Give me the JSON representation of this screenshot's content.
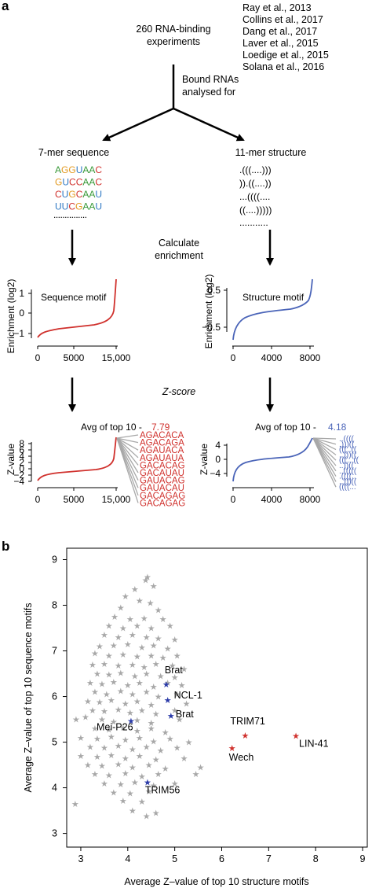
{
  "panel_a": {
    "label": "a",
    "experiments": "260 RNA-binding experiments",
    "experiments_lines": [
      "260 RNA-binding",
      "experiments"
    ],
    "references": [
      "Ray et al., 2013",
      "Collins et al., 2017",
      "Dang et al., 2017",
      "Laver et al., 2015",
      "Loedige et al., 2015",
      "Solana et al., 2016"
    ],
    "bound_lines": [
      "Bound RNAs",
      "analysed for"
    ],
    "seq_title": "7-mer sequence",
    "struct_title": "11-mer structure",
    "kmers": [
      "AGGUAAC",
      "GUCCAAC",
      "CUGCAAU",
      "UUCGAAU"
    ],
    "kmer_dots": "...............",
    "structures": [
      ".(((....)))",
      ")).((....))",
      "...((((....",
      "((....)))))",
      "..........."
    ],
    "calc_lines": [
      "Calculate",
      "enrichment"
    ],
    "zscore": "Z-score",
    "enrich_ylabel": "Enrichment (log2)",
    "zvalue_ylabel": "Z-value",
    "seq_motif": "Sequence motif",
    "struct_motif": "Structure motif",
    "avg_label": "Avg of top 10 -",
    "avg_seq": "7.79",
    "avg_struct": "4.18",
    "top_seq_motifs": [
      "AGACACA",
      "AGACAGA",
      "AGAUACA",
      "AGAUAUA",
      "GACACAG",
      "GACAUAU",
      "GAUACAG",
      "GAUACAU",
      "GACAGAG",
      "GACAGAG"
    ],
    "seq_ticks_x": [
      "0",
      "5000",
      "15,000"
    ],
    "struct_ticks_x": [
      "0",
      "4000",
      "8000"
    ],
    "seq_enrich_ticks_y": [
      "1",
      "0",
      "−1"
    ],
    "struct_enrich_ticks_y": [
      "0.5",
      "−0.5"
    ],
    "z_ticks_y_seq": [
      "8",
      "6",
      "4",
      "2",
      "0",
      "−2",
      "−4"
    ],
    "z_ticks_y_struct": [
      "4",
      "0",
      "−4"
    ],
    "colors": {
      "seq": "#d0312d",
      "struct": "#4a64b8",
      "grey": "#a8a8a8"
    }
  },
  "chart_data": {
    "type": "scatter",
    "panel_label": "b",
    "xlabel": "Average Z–value of top 10 structure motifs",
    "ylabel": "Average Z–value of top 10 sequence motifs",
    "xlim": [
      2.7,
      9.1
    ],
    "ylim": [
      2.7,
      9.25
    ],
    "xticks": [
      "3",
      "4",
      "5",
      "6",
      "7",
      "8",
      "9"
    ],
    "yticks": [
      "3",
      "4",
      "5",
      "6",
      "7",
      "8",
      "9"
    ],
    "grey_points": [
      [
        4.42,
        8.62
      ],
      [
        4.38,
        8.55
      ],
      [
        4.15,
        8.35
      ],
      [
        4.55,
        8.42
      ],
      [
        3.95,
        8.2
      ],
      [
        4.25,
        8.1
      ],
      [
        4.48,
        8.05
      ],
      [
        3.85,
        7.95
      ],
      [
        4.65,
        7.9
      ],
      [
        3.72,
        7.75
      ],
      [
        4.05,
        7.7
      ],
      [
        4.35,
        7.72
      ],
      [
        4.75,
        7.7
      ],
      [
        3.6,
        7.55
      ],
      [
        3.9,
        7.5
      ],
      [
        4.2,
        7.55
      ],
      [
        4.5,
        7.5
      ],
      [
        4.9,
        7.55
      ],
      [
        3.5,
        7.35
      ],
      [
        3.8,
        7.3
      ],
      [
        4.1,
        7.35
      ],
      [
        4.4,
        7.3
      ],
      [
        4.65,
        7.28
      ],
      [
        5.0,
        7.25
      ],
      [
        3.4,
        7.1
      ],
      [
        3.7,
        7.12
      ],
      [
        4.0,
        7.15
      ],
      [
        4.3,
        7.08
      ],
      [
        4.55,
        7.12
      ],
      [
        4.85,
        7.05
      ],
      [
        3.3,
        6.95
      ],
      [
        3.6,
        6.9
      ],
      [
        3.9,
        6.92
      ],
      [
        4.2,
        6.88
      ],
      [
        4.5,
        6.9
      ],
      [
        4.75,
        6.85
      ],
      [
        5.05,
        6.9
      ],
      [
        3.25,
        6.7
      ],
      [
        3.5,
        6.72
      ],
      [
        3.8,
        6.68
      ],
      [
        4.1,
        6.7
      ],
      [
        4.35,
        6.65
      ],
      [
        4.6,
        6.72
      ],
      [
        4.95,
        6.68
      ],
      [
        5.2,
        6.6
      ],
      [
        3.35,
        6.5
      ],
      [
        3.6,
        6.48
      ],
      [
        3.85,
        6.52
      ],
      [
        4.15,
        6.45
      ],
      [
        4.4,
        6.5
      ],
      [
        4.7,
        6.45
      ],
      [
        5.0,
        6.42
      ],
      [
        3.2,
        6.3
      ],
      [
        3.45,
        6.28
      ],
      [
        3.7,
        6.32
      ],
      [
        4.0,
        6.25
      ],
      [
        4.25,
        6.3
      ],
      [
        4.55,
        6.22
      ],
      [
        4.85,
        6.3
      ],
      [
        5.15,
        6.25
      ],
      [
        3.3,
        6.1
      ],
      [
        3.55,
        6.05
      ],
      [
        3.85,
        6.12
      ],
      [
        4.1,
        6.05
      ],
      [
        4.4,
        6.1
      ],
      [
        4.65,
        6.0
      ],
      [
        5.05,
        6.05
      ],
      [
        3.15,
        5.9
      ],
      [
        3.4,
        5.88
      ],
      [
        3.65,
        5.92
      ],
      [
        3.95,
        5.85
      ],
      [
        4.2,
        5.9
      ],
      [
        4.5,
        5.82
      ],
      [
        5.25,
        5.85
      ],
      [
        3.25,
        5.7
      ],
      [
        3.5,
        5.68
      ],
      [
        3.8,
        5.72
      ],
      [
        4.05,
        5.65
      ],
      [
        4.3,
        5.7
      ],
      [
        4.6,
        5.62
      ],
      [
        5.0,
        5.7
      ],
      [
        2.9,
        5.5
      ],
      [
        3.1,
        5.55
      ],
      [
        3.45,
        5.5
      ],
      [
        3.7,
        5.45
      ],
      [
        4.2,
        5.48
      ],
      [
        4.5,
        5.42
      ],
      [
        5.1,
        5.5
      ],
      [
        3.3,
        5.3
      ],
      [
        3.6,
        5.28
      ],
      [
        3.9,
        5.32
      ],
      [
        4.2,
        5.25
      ],
      [
        4.5,
        5.3
      ],
      [
        4.8,
        5.22
      ],
      [
        3.0,
        5.1
      ],
      [
        3.35,
        5.08
      ],
      [
        3.65,
        5.12
      ],
      [
        3.95,
        5.05
      ],
      [
        4.25,
        5.1
      ],
      [
        4.55,
        5.02
      ],
      [
        4.9,
        5.08
      ],
      [
        5.3,
        5.0
      ],
      [
        3.2,
        4.9
      ],
      [
        3.5,
        4.88
      ],
      [
        3.8,
        4.92
      ],
      [
        4.1,
        4.85
      ],
      [
        4.4,
        4.9
      ],
      [
        4.7,
        4.82
      ],
      [
        5.05,
        4.88
      ],
      [
        3.0,
        4.7
      ],
      [
        3.35,
        4.68
      ],
      [
        3.65,
        4.72
      ],
      [
        3.95,
        4.65
      ],
      [
        4.25,
        4.7
      ],
      [
        4.6,
        4.62
      ],
      [
        5.2,
        4.65
      ],
      [
        3.15,
        4.5
      ],
      [
        3.45,
        4.48
      ],
      [
        3.8,
        4.52
      ],
      [
        4.1,
        4.45
      ],
      [
        4.45,
        4.5
      ],
      [
        4.8,
        4.42
      ],
      [
        5.55,
        4.45
      ],
      [
        3.3,
        4.3
      ],
      [
        3.6,
        4.28
      ],
      [
        3.95,
        4.32
      ],
      [
        4.3,
        4.25
      ],
      [
        4.65,
        4.3
      ],
      [
        5.45,
        4.3
      ],
      [
        3.5,
        4.1
      ],
      [
        3.85,
        4.08
      ],
      [
        4.15,
        4.12
      ],
      [
        4.55,
        4.05
      ],
      [
        5.0,
        4.1
      ],
      [
        3.7,
        3.9
      ],
      [
        4.05,
        3.88
      ],
      [
        4.45,
        3.92
      ],
      [
        3.9,
        3.72
      ],
      [
        4.3,
        3.7
      ],
      [
        2.88,
        3.65
      ],
      [
        4.1,
        3.5
      ],
      [
        4.6,
        3.45
      ],
      [
        4.4,
        3.38
      ]
    ],
    "blue_points": [
      {
        "label": "Brat",
        "x": 4.82,
        "y": 6.27
      },
      {
        "label": "NCL-1",
        "x": 4.85,
        "y": 5.92
      },
      {
        "label": "Brat",
        "x": 4.92,
        "y": 5.58
      },
      {
        "label": "Mei-P26",
        "x": 4.07,
        "y": 5.47
      },
      {
        "label": "TRIM56",
        "x": 4.42,
        "y": 4.12
      }
    ],
    "red_points": [
      {
        "label": "TRIM71",
        "x": 6.5,
        "y": 5.15
      },
      {
        "label": "LIN-41",
        "x": 7.58,
        "y": 5.14
      },
      {
        "label": "Wech",
        "x": 6.22,
        "y": 4.87
      }
    ]
  }
}
